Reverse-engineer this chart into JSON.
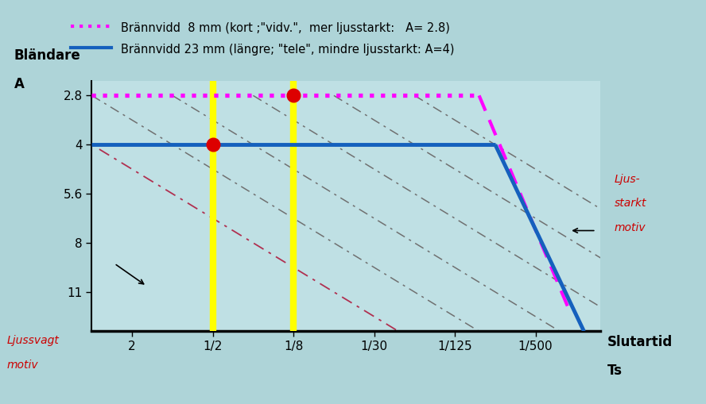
{
  "legend_line1": "Brännvidd  8 mm (kort ;\"vidv.\",  mer ljusstarkt:   A= 2.8)",
  "legend_line2": "Brännvidd 23 mm (längre; \"tele\", mindre ljusstarkt: A=4)",
  "ylabel_line1": "Bländare",
  "ylabel_line2": "A",
  "background_color": "#aed4d8",
  "plot_bg_color": "#bfe0e4",
  "x_ticks_labels": [
    "2",
    "1/2",
    "1/8",
    "1/30",
    "1/125",
    "1/500"
  ],
  "x_ticks_values": [
    0,
    1,
    2,
    3,
    4,
    5
  ],
  "y_ticks_labels": [
    "2.8",
    "4",
    "5.6",
    "8",
    "11"
  ],
  "y_ticks_values": [
    0,
    1,
    2,
    3,
    4
  ],
  "magenta_color": "#ff00ff",
  "blue_color": "#1560bd",
  "yellow_color": "#ffff00",
  "red_color": "#dd0000",
  "dark_red_text": "#cc0000",
  "diag_red_color": "#b03050",
  "diag_gray_color": "#707070",
  "xmin": -0.5,
  "xmax": 5.8,
  "ymin": -0.3,
  "ymax": 4.8
}
